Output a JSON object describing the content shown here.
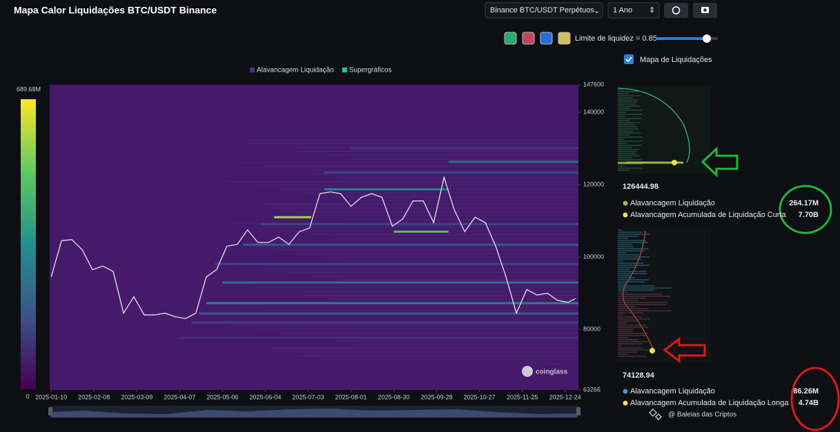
{
  "chart_data": {
    "type": "heatmap",
    "title": "Mapa Calor Liquidações BTC/USDT Binance",
    "legend": [
      {
        "name": "Alavancagem Liquidação",
        "color": "#5b2a86"
      },
      {
        "name": "Supergráficos",
        "color": "#22c38e"
      }
    ],
    "background": "#461a6b",
    "colorscale": [
      "#440154",
      "#3b528b",
      "#21918c",
      "#5ec962",
      "#fde725"
    ],
    "clim": [
      0,
      689.68
    ],
    "cticks": [
      0,
      {
        "value": 689.68,
        "label": "689.68M"
      }
    ],
    "xlim": [
      "2025-01-09",
      "2026-01-02"
    ],
    "xticks": [
      "2025-01-10",
      "2025-02-08",
      "2025-03-09",
      "2025-04-07",
      "2025-05-06",
      "2025-06-04",
      "2025-07-03",
      "2025-08-01",
      "2025-08-30",
      "2025-09-28",
      "2025-10-27",
      "2025-11-25",
      "2025-12-24"
    ],
    "ylim": [
      63266,
      147600
    ],
    "yticks": [
      63266,
      80000,
      100000,
      120000,
      140000,
      147600
    ],
    "bands": {
      "y": [
        111000,
        107000,
        126300,
        118700,
        92960,
        87250,
        84400,
        81900,
        98100,
        130100,
        123400,
        103400,
        109100,
        77700
      ],
      "x_start": [
        "2025-06-10",
        "2025-08-30",
        "2025-10-06",
        "2025-07-14",
        "2025-05-06",
        "2025-04-25",
        "2025-04-20",
        "2025-04-15",
        "2025-05-01",
        "2025-08-01",
        "2025-07-14",
        "2025-05-20",
        "2025-06-01",
        "2025-04-07"
      ],
      "x_end": [
        "2025-07-05",
        "2025-10-06",
        "2026-01-02",
        "2025-10-06",
        "2026-01-02",
        "2026-01-02",
        "2026-01-02",
        "2026-01-02",
        "2026-01-02",
        "2026-01-02",
        "2026-01-02",
        "2026-01-02",
        "2026-01-02",
        "2026-01-02"
      ],
      "values": [
        600,
        500,
        250,
        300,
        250,
        300,
        200,
        150,
        150,
        120,
        150,
        180,
        150,
        100
      ]
    },
    "price": {
      "color": "#e4e6ea",
      "x": [
        "2025-01-10",
        "2025-01-17",
        "2025-01-24",
        "2025-01-31",
        "2025-02-07",
        "2025-02-14",
        "2025-02-21",
        "2025-02-28",
        "2025-03-07",
        "2025-03-14",
        "2025-03-21",
        "2025-03-28",
        "2025-04-04",
        "2025-04-11",
        "2025-04-18",
        "2025-04-25",
        "2025-05-02",
        "2025-05-09",
        "2025-05-16",
        "2025-05-23",
        "2025-05-30",
        "2025-06-06",
        "2025-06-13",
        "2025-06-20",
        "2025-06-27",
        "2025-07-04",
        "2025-07-11",
        "2025-07-18",
        "2025-07-25",
        "2025-08-01",
        "2025-08-08",
        "2025-08-15",
        "2025-08-22",
        "2025-08-29",
        "2025-09-05",
        "2025-09-12",
        "2025-09-19",
        "2025-09-26",
        "2025-10-03",
        "2025-10-10",
        "2025-10-17",
        "2025-10-24",
        "2025-10-31",
        "2025-11-07",
        "2025-11-14",
        "2025-11-21",
        "2025-11-28",
        "2025-12-05",
        "2025-12-12",
        "2025-12-19",
        "2025-12-26",
        "2025-12-31"
      ],
      "values": [
        94500,
        104500,
        104800,
        102000,
        96500,
        97500,
        96000,
        84500,
        89000,
        84000,
        84000,
        84500,
        83500,
        83000,
        84500,
        94500,
        96500,
        103000,
        103500,
        107500,
        104000,
        104000,
        105500,
        103500,
        107000,
        108000,
        117500,
        118000,
        117500,
        114000,
        116500,
        117500,
        116500,
        108500,
        110500,
        115500,
        115500,
        109500,
        122000,
        113000,
        107000,
        111000,
        109500,
        103000,
        94500,
        84500,
        91000,
        89500,
        90000,
        88000,
        87500,
        88500
      ]
    },
    "watermark": "coinglass"
  },
  "controls": {
    "exchange": "Binance BTC/USDT Perpétuos",
    "range": "1 Ano",
    "liquidity_label": "Limite de liquidez = 0.85",
    "toggle": "Mapa de Liquidações"
  },
  "side_panel": {
    "upper": {
      "price_label": "126444.98",
      "items": [
        {
          "label": "Alavancagem Liquidação",
          "value": "264.17M"
        },
        {
          "label": "Alavancagem Acumulada de Liquidação Curta",
          "value": "7.70B"
        }
      ]
    },
    "lower": {
      "price_label": "74128.94",
      "items": [
        {
          "label": "Alavancagem Liquidação",
          "value": "86.26M"
        },
        {
          "label": "Alavancagem Acumulada de Liquidação Longa",
          "value": "4.74B"
        }
      ]
    }
  },
  "credit": "@ Baleias das Criptos"
}
